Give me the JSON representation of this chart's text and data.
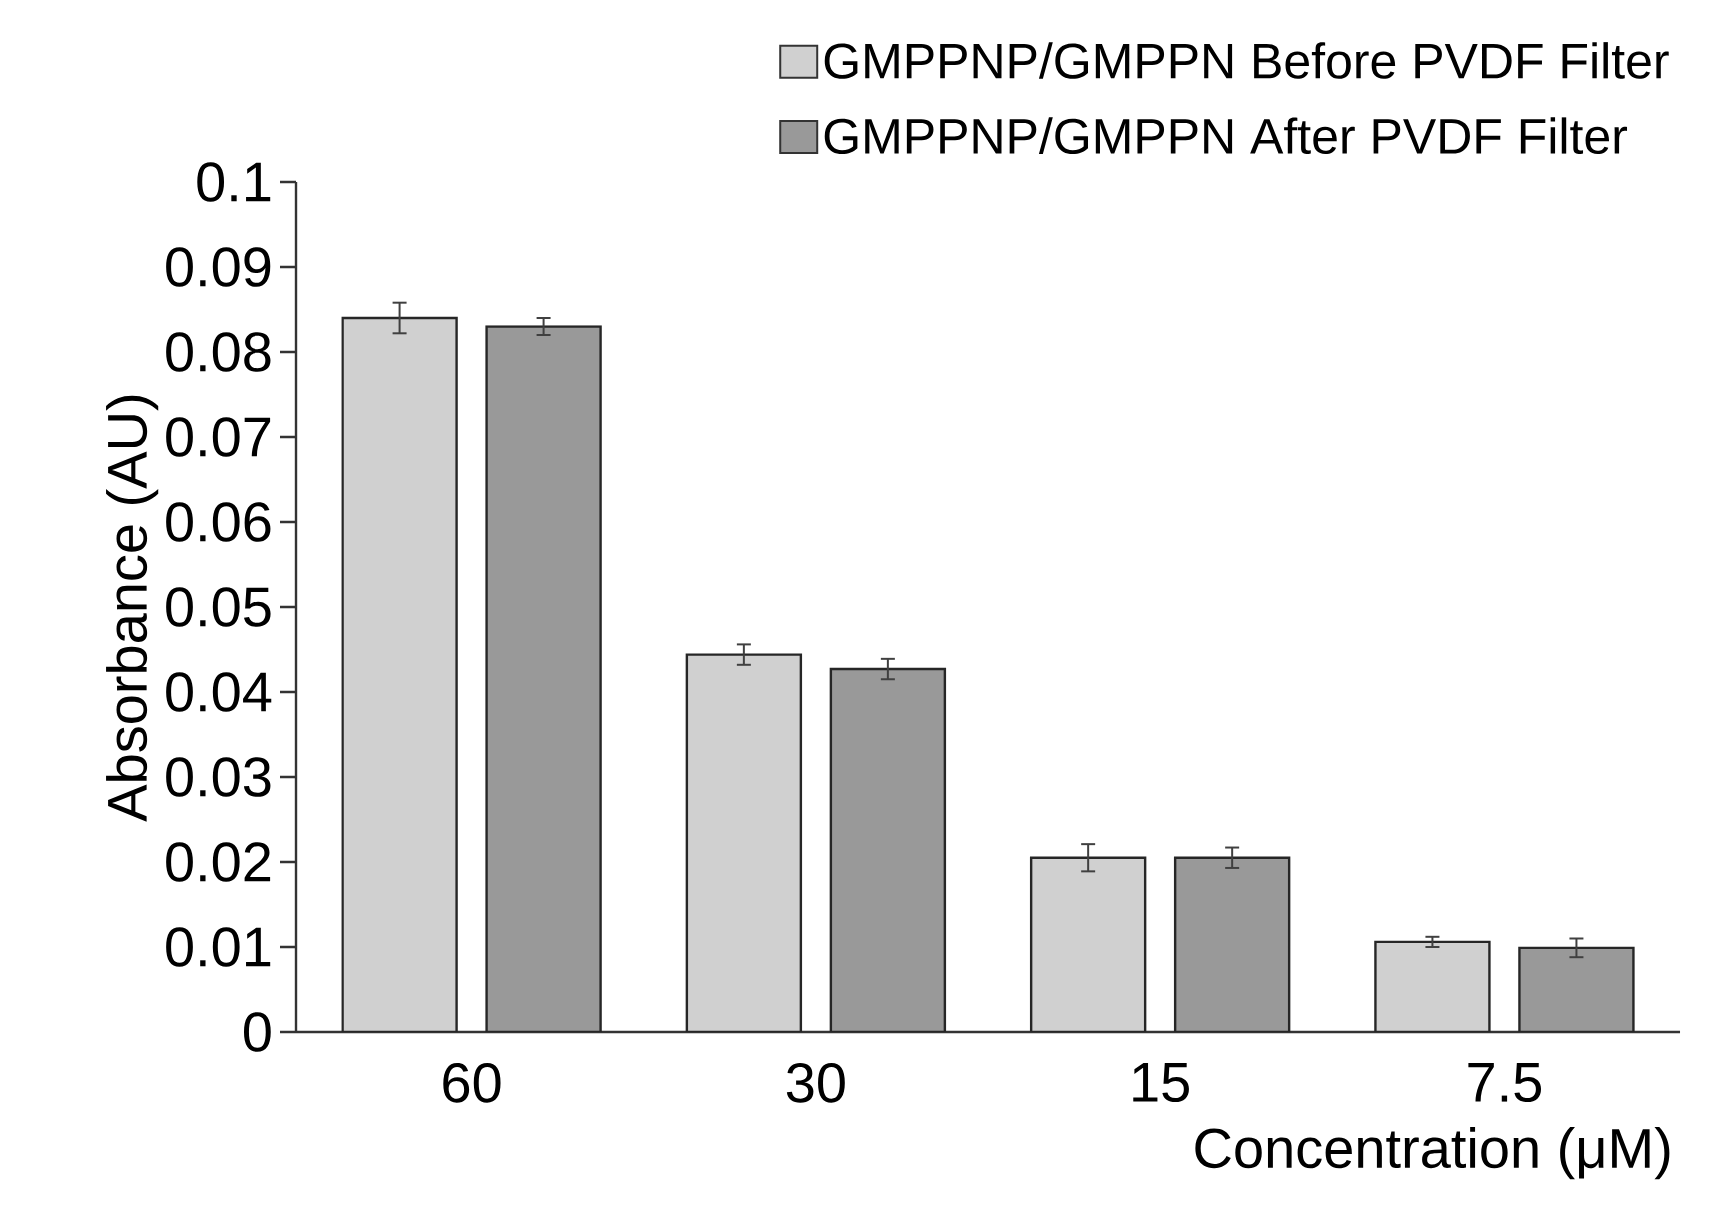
{
  "chart_data": {
    "type": "bar",
    "xlabel": "Concentration (μM)",
    "ylabel": "Absorbance (AU)",
    "categories": [
      "60",
      "30",
      "15",
      "7.5"
    ],
    "series": [
      {
        "name": "GMPPNP/GMPPN Before PVDF Filter",
        "color": "#d0d0d0",
        "values": [
          0.084,
          0.0444,
          0.0205,
          0.0106
        ],
        "errors": [
          0.0018,
          0.0012,
          0.0016,
          0.0006
        ]
      },
      {
        "name": "GMPPNP/GMPPN After PVDF Filter",
        "color": "#999999",
        "values": [
          0.083,
          0.0427,
          0.0205,
          0.0099
        ],
        "errors": [
          0.001,
          0.0012,
          0.0012,
          0.0011
        ]
      }
    ],
    "ylim": [
      0,
      0.1
    ],
    "yticks": [
      0,
      0.01,
      0.02,
      0.03,
      0.04,
      0.05,
      0.06,
      0.07,
      0.08,
      0.09,
      0.1
    ],
    "grid": false,
    "legend": "top right"
  }
}
